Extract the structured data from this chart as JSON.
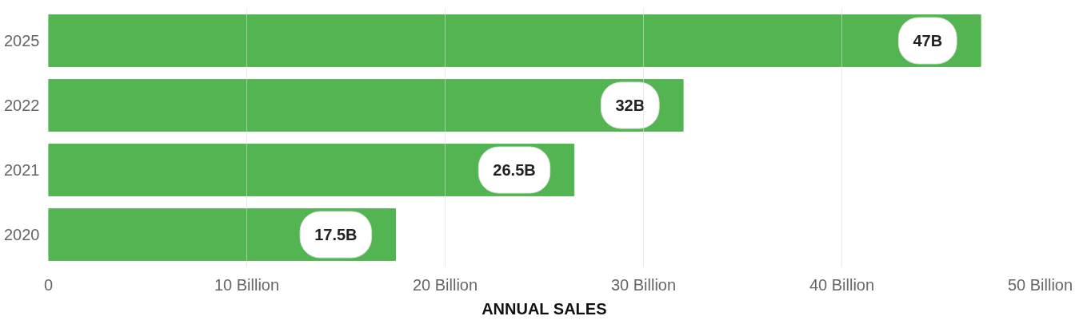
{
  "chart_data": {
    "type": "bar",
    "orientation": "horizontal",
    "categories": [
      "2025",
      "2022",
      "2021",
      "2020"
    ],
    "values": [
      47,
      32,
      26.5,
      17.5
    ],
    "value_labels": [
      "47B",
      "32B",
      "26.5B",
      "17.5B"
    ],
    "color": "#52b552",
    "xlim": [
      0,
      50
    ],
    "xticks": [
      0,
      {
        "value": 10,
        "label": "10 Billion"
      },
      {
        "value": 20,
        "label": "20 Billion"
      },
      {
        "value": 30,
        "label": "30 Billion"
      },
      {
        "value": 40,
        "label": "40 Billion"
      },
      {
        "value": 50,
        "label": "50 Billion"
      }
    ],
    "xlabel": "ANNUAL SALES",
    "grid": "x"
  }
}
